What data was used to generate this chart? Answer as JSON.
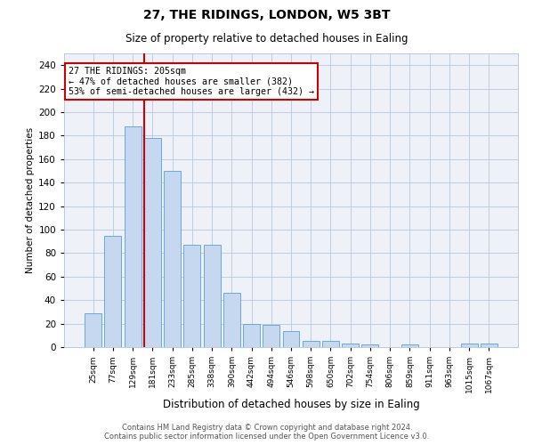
{
  "title1": "27, THE RIDINGS, LONDON, W5 3BT",
  "title2": "Size of property relative to detached houses in Ealing",
  "xlabel": "Distribution of detached houses by size in Ealing",
  "ylabel": "Number of detached properties",
  "categories": [
    "25sqm",
    "77sqm",
    "129sqm",
    "181sqm",
    "233sqm",
    "285sqm",
    "338sqm",
    "390sqm",
    "442sqm",
    "494sqm",
    "546sqm",
    "598sqm",
    "650sqm",
    "702sqm",
    "754sqm",
    "806sqm",
    "859sqm",
    "911sqm",
    "963sqm",
    "1015sqm",
    "1067sqm"
  ],
  "values": [
    29,
    95,
    188,
    178,
    150,
    87,
    87,
    46,
    20,
    19,
    14,
    5,
    5,
    3,
    2,
    0,
    2,
    0,
    0,
    3,
    3
  ],
  "bar_color": "#c5d8f0",
  "bar_edge_color": "#5a9fd4",
  "property_line_label": "27 THE RIDINGS: 205sqm",
  "annotation_line1": "← 47% of detached houses are smaller (382)",
  "annotation_line2": "53% of semi-detached houses are larger (432) →",
  "ylim": [
    0,
    250
  ],
  "yticks": [
    0,
    20,
    40,
    60,
    80,
    100,
    120,
    140,
    160,
    180,
    200,
    220,
    240
  ],
  "annotation_box_color": "#ffffff",
  "annotation_box_edge_color": "#cc0000",
  "footer_line1": "Contains HM Land Registry data © Crown copyright and database right 2024.",
  "footer_line2": "Contains public sector information licensed under the Open Government Licence v3.0.",
  "background_color": "#eef2f8"
}
